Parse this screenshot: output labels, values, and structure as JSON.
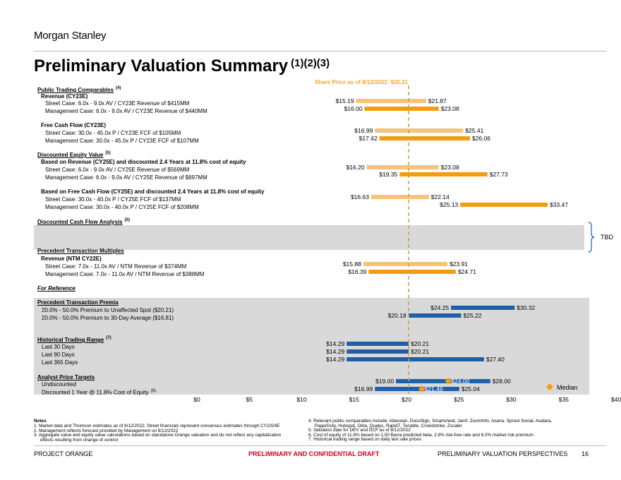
{
  "header": {
    "logo": "Morgan Stanley",
    "title": "Preliminary Valuation Summary",
    "title_sup": "(1)(2)(3)",
    "share_price_label": "Share Price as of 8/12/2022: $20.21"
  },
  "sections": {
    "ptc": {
      "title": "Public Trading Comparables",
      "sup": "(4)"
    },
    "rev_cy23": "Revenue (CY23E)",
    "fcf_cy23": "Free Cash Flow (CY23E)",
    "dev": {
      "title": "Discounted Equity Value",
      "sup": "(5)"
    },
    "dev_rev": "Based on Revenue (CY25E) and discounted 2.4 Years at 11.8% cost of equity",
    "dev_fcf": "Based on Free Cash Flow (CY25E) and discounted 2.4 Years at 11.8% cost of equity",
    "dcf": {
      "title": "Discounted Cash Flow Analysis",
      "sup": "(5)"
    },
    "ptm": "Precedent Transaction Multiples",
    "rev_ntm": "Revenue (NTM CY22E)",
    "for_reference": "For Reference",
    "ptp": "Precedent Transaction Premia",
    "htr": {
      "title": "Historical Trading Range",
      "sup": "(7)"
    },
    "apt": "Analyst Price Targets",
    "apt_disc_sup": "(6)"
  },
  "rows": {
    "r1": "Street Case: 6.0x - 9.0x AV /  CY23E Revenue of $415MM",
    "r2": "Management Case: 6.0x - 9.0x AV / CY23E Revenue of $440MM",
    "r3": "Street Case: 30.0x - 45.0x P /  CY23E FCF of $105MM",
    "r4": "Management Case: 30.0x - 45.0x P / CY23E FCF of $107MM",
    "r5": "Street Case: 6.0x - 9.0x AV / CY25E Revenue of $569MM",
    "r6": "Management Case: 6.0x - 9.0x AV / CY25E Revenue of $697MM",
    "r7": "Street Case: 30.0x - 40.0x P / CY25E FCF of $137MM",
    "r8": "Management Case: 30.0x - 40.0x P / CY25E FCF of $208MM",
    "r9": "Street Case: 7.0x - 11.0x AV /  NTM Revenue of $374MM",
    "r10": "Management Case: 7.0x - 11.0x AV /  NTM Revenue of $388MM",
    "r11": "20.0% - 50.0% Premium to Unaffected Spot ($20.21)",
    "r12": "20.0% - 50.0% Premium to 30-Day Average ($16.81)",
    "r13": "Last 30 Days",
    "r14": "Last 90 Days",
    "r15": "Last 365 Days",
    "r16": "Undiscounted",
    "r17": "Discounted 1 Year @ 11.8% Cost of Equity"
  },
  "tbd_label": "TBD",
  "legend": {
    "median_label": "Median",
    "median_color": "#f39c12"
  },
  "colors": {
    "light_orange": "#f9c27a",
    "dark_orange": "#f39c12",
    "blue": "#1f5fa8",
    "share_line": "#c8a24a",
    "panel": "#d9d9d9"
  },
  "chart_data": {
    "type": "floating_bar",
    "title": "Preliminary Valuation Summary",
    "x_axis": {
      "min": 0,
      "max": 40,
      "ticks": [
        "$0",
        "$5",
        "$10",
        "$15",
        "$20",
        "$25",
        "$30",
        "$35",
        "$40"
      ]
    },
    "reference_line": {
      "value": 20.21,
      "label": "Share Price as of 8/12/2022: $20.21"
    },
    "bars": [
      {
        "id": "b1",
        "low": 15.19,
        "high": 21.87,
        "low_label": "$15.19",
        "high_label": "$21.87",
        "color": "light"
      },
      {
        "id": "b2",
        "low": 16.0,
        "high": 23.08,
        "low_label": "$16.00",
        "high_label": "$23.08",
        "color": "dark"
      },
      {
        "id": "b3",
        "low": 16.99,
        "high": 25.41,
        "low_label": "$16.99",
        "high_label": "$25.41",
        "color": "light"
      },
      {
        "id": "b4",
        "low": 17.42,
        "high": 26.06,
        "low_label": "$17.42",
        "high_label": "$26.06",
        "color": "dark"
      },
      {
        "id": "b5",
        "low": 16.2,
        "high": 23.08,
        "low_label": "$16.20",
        "high_label": "$23.08",
        "color": "light"
      },
      {
        "id": "b6",
        "low": 19.35,
        "high": 27.73,
        "low_label": "$19.35",
        "high_label": "$27.73",
        "color": "dark"
      },
      {
        "id": "b7",
        "low": 16.63,
        "high": 22.14,
        "low_label": "$16.63",
        "high_label": "$22.14",
        "color": "light"
      },
      {
        "id": "b8",
        "low": 25.13,
        "high": 33.47,
        "low_label": "$25.13",
        "high_label": "$33.47",
        "color": "dark",
        "note": "low label drawn at bar start"
      },
      {
        "id": "b9",
        "low": 15.88,
        "high": 23.91,
        "low_label": "$15.88",
        "high_label": "$23.91",
        "color": "light"
      },
      {
        "id": "b10",
        "low": 16.39,
        "high": 24.71,
        "low_label": "$16.39",
        "high_label": "$24.71",
        "color": "dark"
      },
      {
        "id": "b11",
        "low": 24.25,
        "high": 30.32,
        "low_label": "$24.25",
        "high_label": "$30.32",
        "color": "blue"
      },
      {
        "id": "b12",
        "low": 20.18,
        "high": 25.22,
        "low_label": "$20.18",
        "high_label": "$25.22",
        "color": "blue"
      },
      {
        "id": "b13",
        "low": 14.29,
        "high": 20.21,
        "low_label": "$14.29",
        "high_label": "$20.21",
        "color": "blue"
      },
      {
        "id": "b14",
        "low": 14.29,
        "high": 20.21,
        "low_label": "$14.29",
        "high_label": "$20.21",
        "color": "blue"
      },
      {
        "id": "b15",
        "low": 14.29,
        "high": 27.4,
        "low_label": "$14.29",
        "high_label": "$27.40",
        "color": "blue"
      },
      {
        "id": "b16",
        "low": 19.0,
        "high": 28.0,
        "low_label": "$19.00",
        "high_label": "$28.00",
        "color": "blue",
        "median": 24.0,
        "median_label": "$24.00"
      },
      {
        "id": "b17",
        "low": 16.99,
        "high": 25.04,
        "low_label": "$16.99",
        "high_label": "$25.04",
        "color": "blue",
        "median": 21.46,
        "median_label": "$21.46"
      }
    ]
  },
  "notes": {
    "title": "Notes",
    "left": [
      "1.  Market data and Thomson estimates as of 8/12/2022; Street financials represent consensus estimates through CY2024E",
      "2.  Management reflects forecast provided by Management on 8/12/2022",
      "3.  Aggregate value and equity value calculations based on standalone Orange valuation and do not reflect any capitalization",
      "     effects resulting from change of control"
    ],
    "right": [
      "4.  Relevant public comparables include: Atlassian, DocuSign, Smartsheet, Jamf, ZoomInfo, Asana, Sprout Social, Avalara,",
      "     PagerDuty, Hubspot, Okta, Qualys, Rapid7, Tenable, Crowdstrike, Zscaler",
      "5.  Valuation date for DEV and DCF as of 8/12/2022",
      "6.  Cost of equity of 11.8% based on 1.50 Barra predicted beta, 2.8% risk-free rate and 6.0% market risk premium",
      "7.  Historical trading range based on daily last sale prices"
    ]
  },
  "footer": {
    "left": "PROJECT ORANGE",
    "center": "PRELIMINARY AND CONFIDENTIAL DRAFT",
    "right": "PRELIMINARY VALUATION PERSPECTIVES",
    "page": "16"
  }
}
